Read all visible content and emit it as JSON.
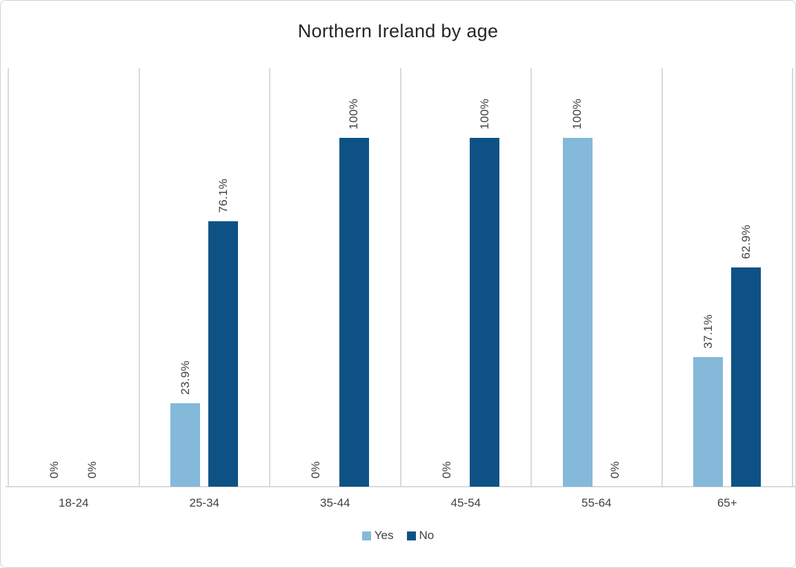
{
  "chart_data": {
    "type": "bar",
    "title": "Northern Ireland by age",
    "categories": [
      "18-24",
      "25-34",
      "35-44",
      "45-54",
      "55-64",
      "65+"
    ],
    "series": [
      {
        "name": "Yes",
        "color": "#84B9DA",
        "values": [
          0,
          23.9,
          0,
          0,
          100,
          37.1
        ],
        "labels": [
          "0%",
          "23.9%",
          "0%",
          "0%",
          "100%",
          "37.1%"
        ]
      },
      {
        "name": "No",
        "color": "#0E5285",
        "values": [
          0,
          76.1,
          100,
          100,
          0,
          62.9
        ],
        "labels": [
          "0%",
          "76.1%",
          "100%",
          "100%",
          "0%",
          "62.9%"
        ]
      }
    ],
    "xlabel": "",
    "ylabel": "",
    "ylim": [
      0,
      120
    ],
    "grid": "vertical-category-boundaries",
    "legend_position": "bottom",
    "data_label_rotation": -90
  },
  "colors": {
    "gridline": "#D9D9D9",
    "axis_line": "#D9D9D9",
    "chart_border": "#D2D2D2",
    "title_text": "#262626",
    "label_text": "#404040",
    "background": "#FFFFFF"
  }
}
